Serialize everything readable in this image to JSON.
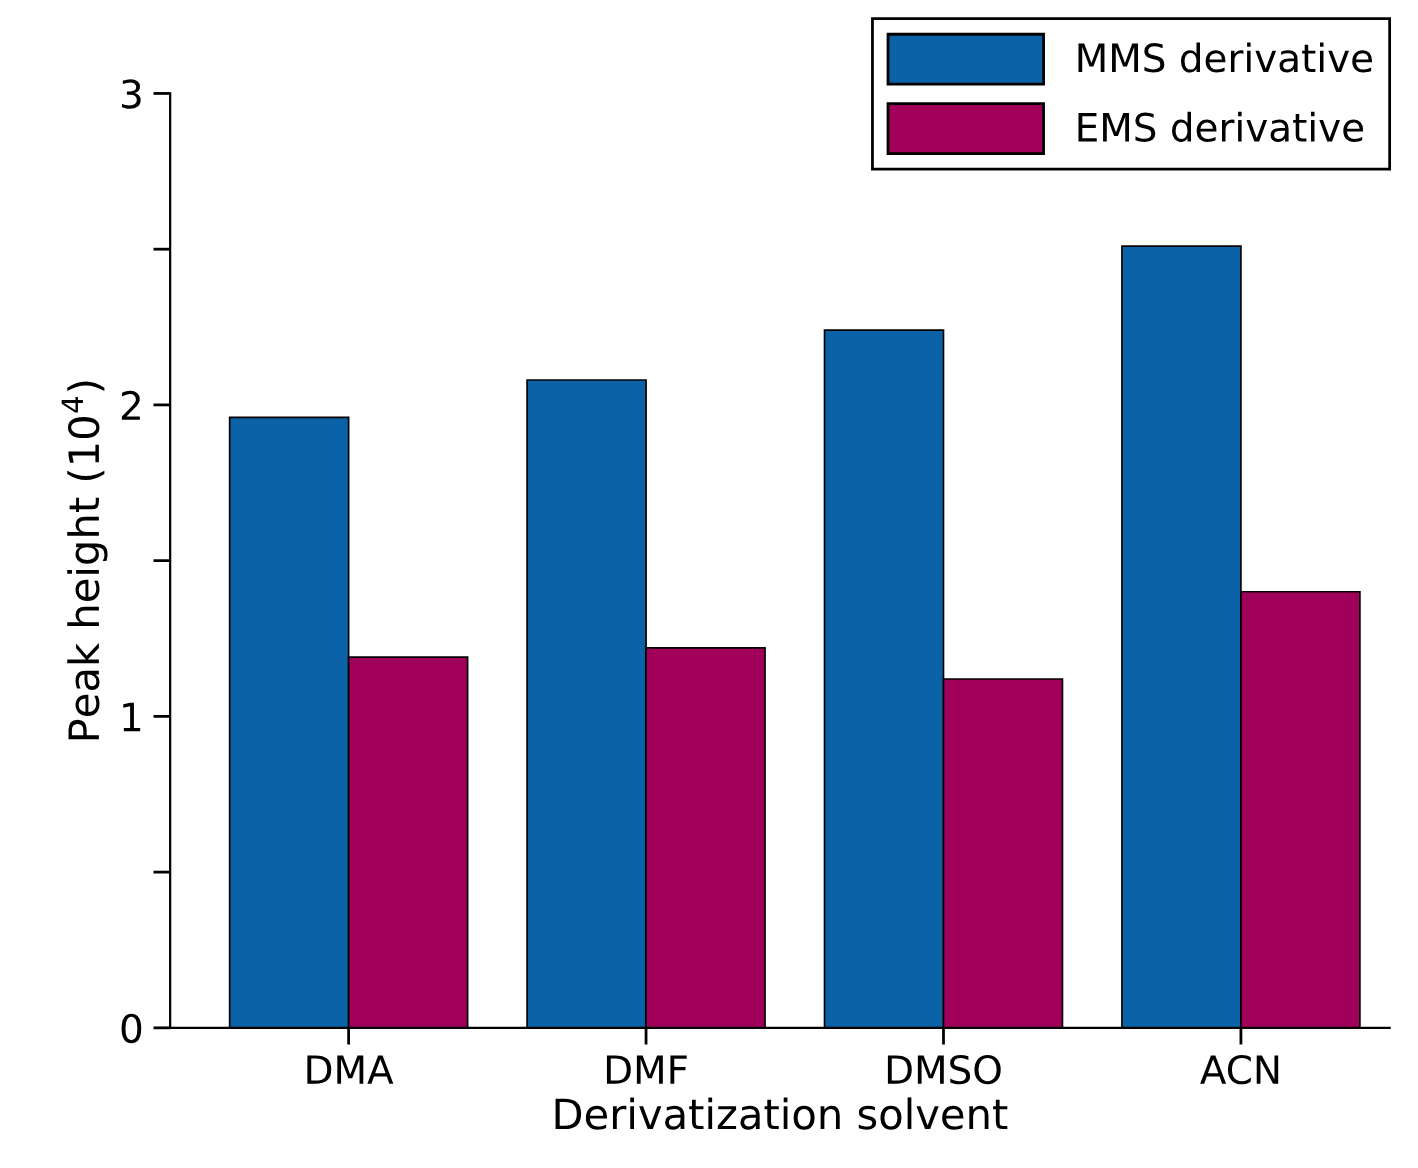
{
  "chart_data": {
    "type": "bar",
    "xlabel": "Derivatization solvent",
    "ylabel": "Peak height (10$^{4}$)",
    "categories": [
      "DMA",
      "DMF",
      "DMSO",
      "ACN"
    ],
    "series": [
      {
        "name": "MMS derivative",
        "color": "#0b62a6",
        "values": [
          1.96,
          2.08,
          2.24,
          2.51
        ]
      },
      {
        "name": "EMS derivative",
        "color": "#a1005a",
        "values": [
          1.19,
          1.22,
          1.12,
          1.4
        ]
      }
    ],
    "ylim": [
      0,
      3
    ],
    "yticks": [
      0,
      {
        "value": 0.5,
        "label": null
      },
      1,
      {
        "value": 1.5,
        "label": null
      },
      2,
      {
        "value": 2.5,
        "label": null
      },
      3
    ],
    "grid": false,
    "legend": "top right"
  }
}
